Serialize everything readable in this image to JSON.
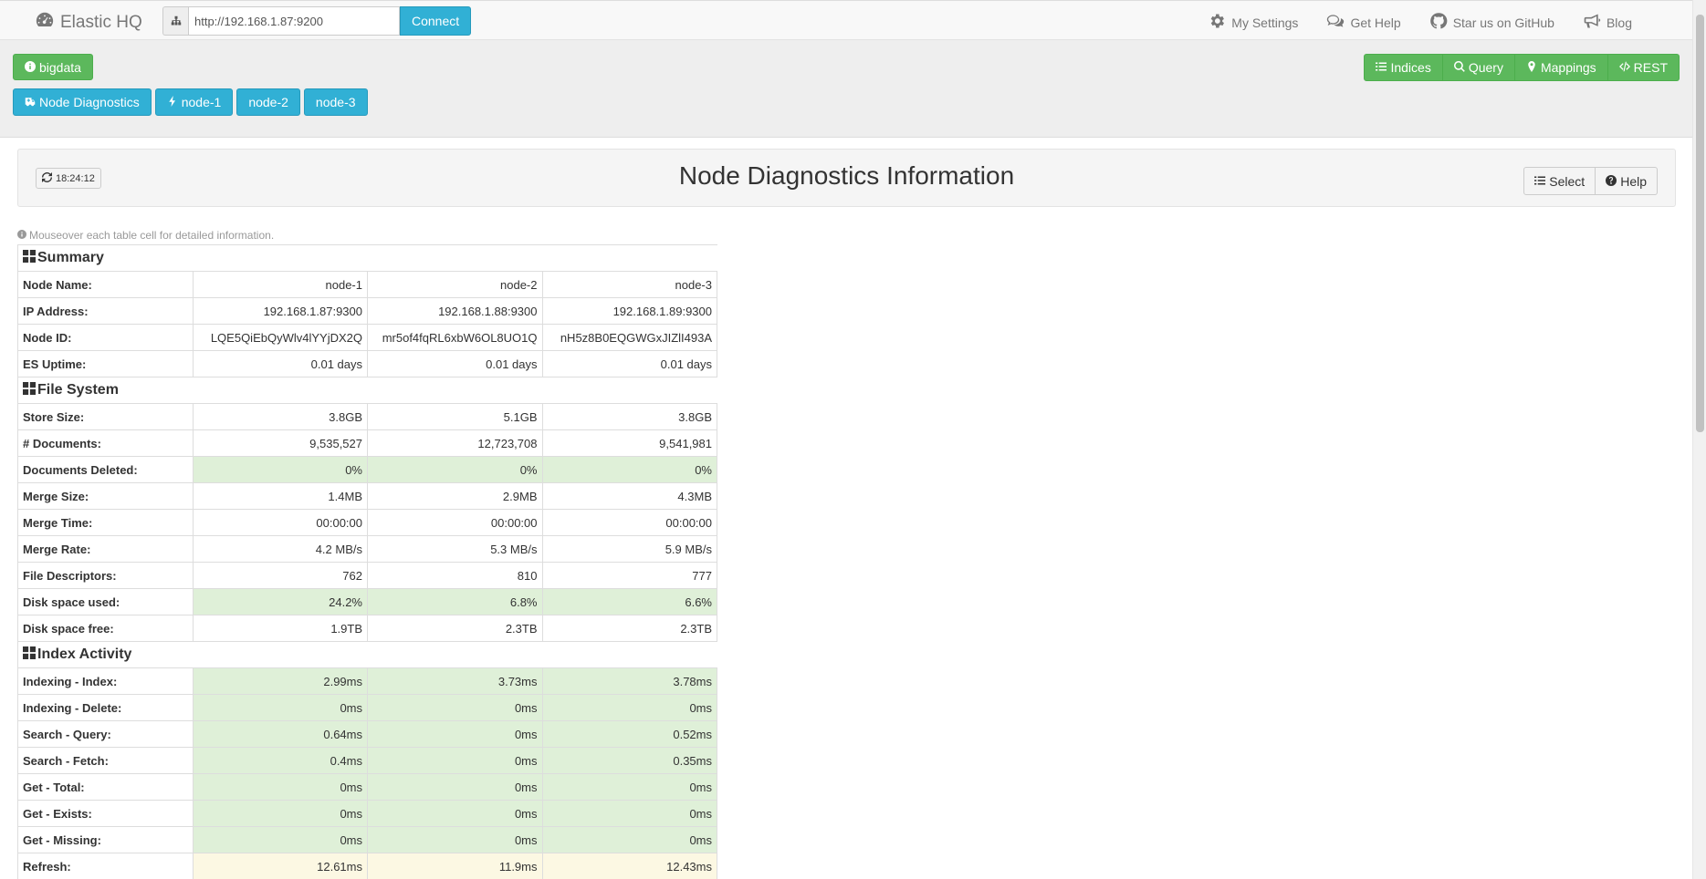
{
  "navbar": {
    "brand": "Elastic HQ",
    "url_value": "http://192.168.1.87:9200",
    "connect_label": "Connect",
    "links": {
      "settings": "My Settings",
      "help": "Get Help",
      "github": "Star us on GitHub",
      "blog": "Blog"
    }
  },
  "subheader": {
    "cluster_label": "bigdata",
    "node_diagnostics_label": "Node Diagnostics",
    "nodes": [
      "node-1",
      "node-2",
      "node-3"
    ],
    "right_buttons": {
      "indices": "Indices",
      "query": "Query",
      "mappings": "Mappings",
      "rest": "REST"
    }
  },
  "panel": {
    "refresh_time": "18:24:12",
    "title": "Node Diagnostics Information",
    "select_label": "Select",
    "help_label": "Help"
  },
  "hint": "Mouseover each table cell for detailed information.",
  "table": {
    "sections": [
      {
        "title": "Summary",
        "rows": [
          {
            "label": "Node Name:",
            "values": [
              "node-1",
              "node-2",
              "node-3"
            ],
            "status": ""
          },
          {
            "label": "IP Address:",
            "values": [
              "192.168.1.87:9300",
              "192.168.1.88:9300",
              "192.168.1.89:9300"
            ],
            "status": ""
          },
          {
            "label": "Node ID:",
            "values": [
              "LQE5QiEbQyWlv4lYYjDX2Q",
              "mr5of4fqRL6xbW6OL8UO1Q",
              "nH5z8B0EQGWGxJIZlI493A"
            ],
            "status": ""
          },
          {
            "label": "ES Uptime:",
            "values": [
              "0.01 days",
              "0.01 days",
              "0.01 days"
            ],
            "status": ""
          }
        ]
      },
      {
        "title": "File System",
        "rows": [
          {
            "label": "Store Size:",
            "values": [
              "3.8GB",
              "5.1GB",
              "3.8GB"
            ],
            "status": ""
          },
          {
            "label": "# Documents:",
            "values": [
              "9,535,527",
              "12,723,708",
              "9,541,981"
            ],
            "status": ""
          },
          {
            "label": "Documents Deleted:",
            "values": [
              "0%",
              "0%",
              "0%"
            ],
            "status": "ok"
          },
          {
            "label": "Merge Size:",
            "values": [
              "1.4MB",
              "2.9MB",
              "4.3MB"
            ],
            "status": ""
          },
          {
            "label": "Merge Time:",
            "values": [
              "00:00:00",
              "00:00:00",
              "00:00:00"
            ],
            "status": ""
          },
          {
            "label": "Merge Rate:",
            "values": [
              "4.2 MB/s",
              "5.3 MB/s",
              "5.9 MB/s"
            ],
            "status": ""
          },
          {
            "label": "File Descriptors:",
            "values": [
              "762",
              "810",
              "777"
            ],
            "status": ""
          },
          {
            "label": "Disk space used:",
            "values": [
              "24.2%",
              "6.8%",
              "6.6%"
            ],
            "status": "ok"
          },
          {
            "label": "Disk space free:",
            "values": [
              "1.9TB",
              "2.3TB",
              "2.3TB"
            ],
            "status": ""
          }
        ]
      },
      {
        "title": "Index Activity",
        "rows": [
          {
            "label": "Indexing - Index:",
            "values": [
              "2.99ms",
              "3.73ms",
              "3.78ms"
            ],
            "status": "ok"
          },
          {
            "label": "Indexing - Delete:",
            "values": [
              "0ms",
              "0ms",
              "0ms"
            ],
            "status": "ok"
          },
          {
            "label": "Search - Query:",
            "values": [
              "0.64ms",
              "0ms",
              "0.52ms"
            ],
            "status": "ok"
          },
          {
            "label": "Search - Fetch:",
            "values": [
              "0.4ms",
              "0ms",
              "0.35ms"
            ],
            "status": "ok"
          },
          {
            "label": "Get - Total:",
            "values": [
              "0ms",
              "0ms",
              "0ms"
            ],
            "status": "ok"
          },
          {
            "label": "Get - Exists:",
            "values": [
              "0ms",
              "0ms",
              "0ms"
            ],
            "status": "ok"
          },
          {
            "label": "Get - Missing:",
            "values": [
              "0ms",
              "0ms",
              "0ms"
            ],
            "status": "ok"
          },
          {
            "label": "Refresh:",
            "values": [
              "12.61ms",
              "11.9ms",
              "12.43ms"
            ],
            "status": "warn"
          }
        ]
      }
    ]
  }
}
